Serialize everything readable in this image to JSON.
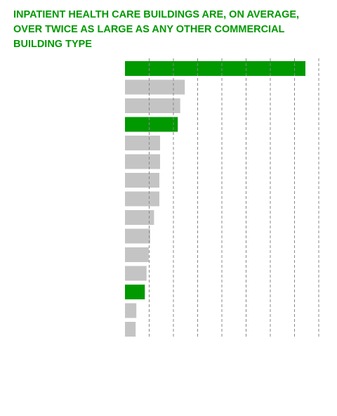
{
  "title_lines": [
    "INPATIENT HEALTH CARE BUILDINGS ARE, ON AVERAGE,",
    "OVER TWICE AS LARGE AS ANY OTHER COMMERCIAL",
    "BUILDING TYPE"
  ],
  "colors": {
    "title": "#009900",
    "highlight": "#009900",
    "default_bar": "#c4c4c4",
    "gridline": "#888888"
  },
  "chart_data": {
    "type": "bar",
    "orientation": "horizontal",
    "title": "INPATIENT HEALTH CARE BUILDINGS ARE, ON AVERAGE, OVER TWICE AS LARGE AS ANY OTHER COMMERCIAL BUILDING TYPE",
    "xlim": [
      0,
      80
    ],
    "gridline_step": 10,
    "grid": true,
    "values": [
      74.5,
      24.7,
      22.8,
      21.8,
      14.5,
      14.5,
      14.2,
      14.2,
      12.0,
      10.4,
      9.8,
      8.9,
      8.2,
      4.7,
      4.4
    ],
    "highlighted": [
      true,
      false,
      false,
      true,
      false,
      false,
      false,
      false,
      false,
      false,
      false,
      false,
      true,
      false,
      false
    ]
  }
}
